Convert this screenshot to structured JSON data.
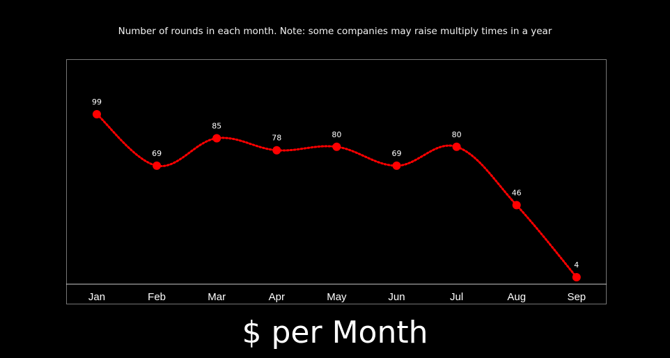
{
  "chart_subtitle": "Number of rounds in each month. Note: some companies may raise multiply times in a year",
  "chart_title": "$ per Month",
  "chart_data": {
    "type": "line",
    "title": "$ per Month",
    "subtitle": "Number of rounds in each month. Note: some companies may raise multiply times in a year",
    "categories": [
      "Jan",
      "Feb",
      "Mar",
      "Apr",
      "May",
      "Jun",
      "Jul",
      "Aug",
      "Sep"
    ],
    "series": [
      {
        "values": [
          99,
          69,
          85,
          78,
          80,
          69,
          80,
          46,
          4
        ]
      }
    ],
    "xlabel": "",
    "ylabel": "",
    "ylim": [
      0,
      105
    ],
    "grid": false,
    "legend": "none",
    "data_labels": true,
    "line_style": "dotted-smooth"
  },
  "colors": {
    "background": "#000000",
    "series": "#ff0000",
    "text": "#ffffff",
    "frame": "#777777"
  }
}
